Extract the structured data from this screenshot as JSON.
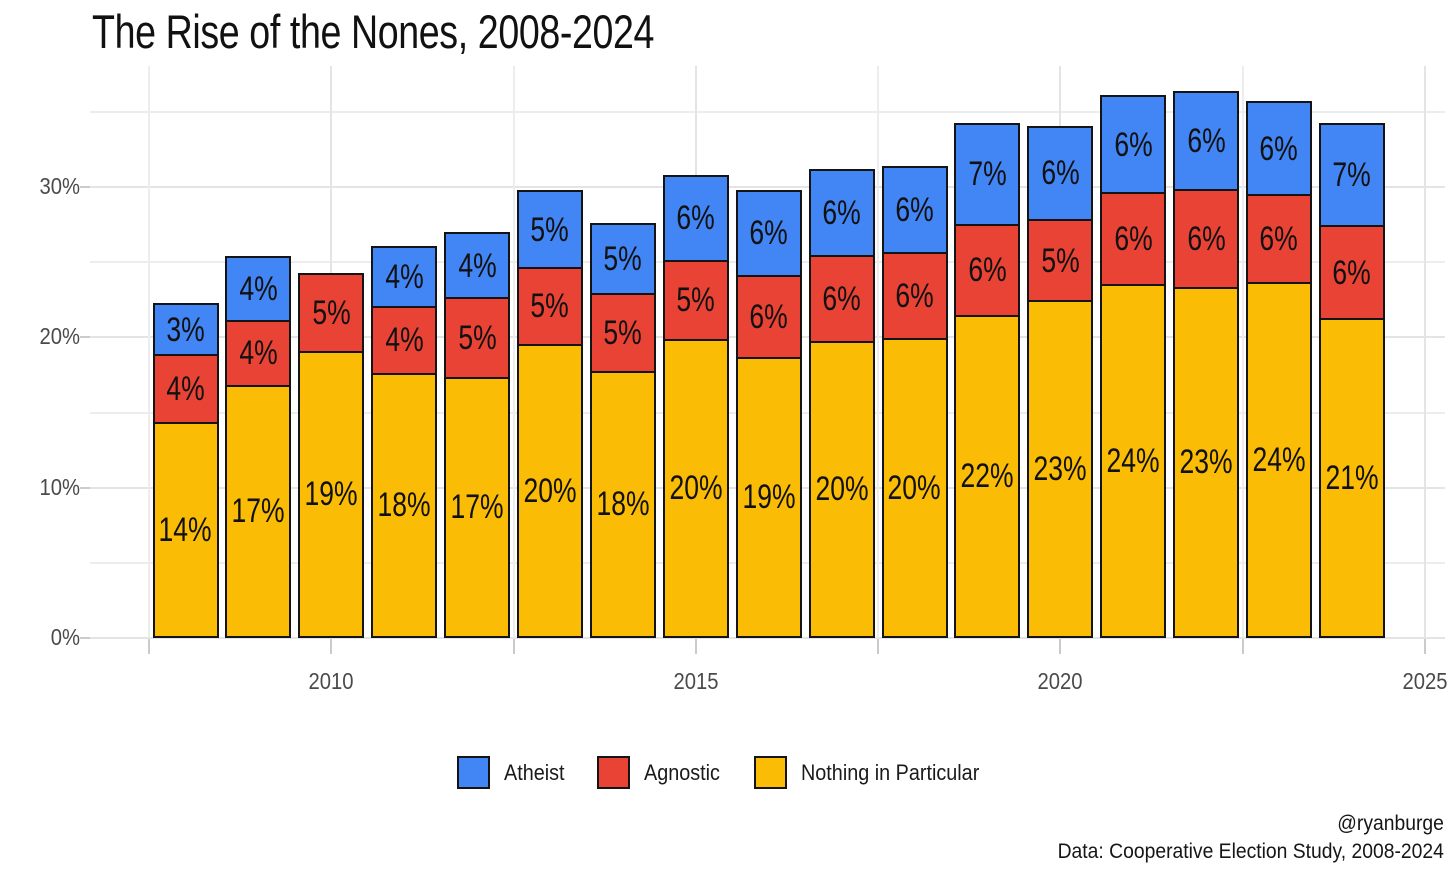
{
  "title": "The Rise of the Nones, 2008-2024",
  "caption": {
    "handle": "@ryanburge",
    "source": "Data: Cooperative Election Study, 2008-2024"
  },
  "legend": {
    "items": [
      {
        "label": "Atheist",
        "color": "#4285F4"
      },
      {
        "label": "Agnostic",
        "color": "#E94335"
      },
      {
        "label": "Nothing in Particular",
        "color": "#FBBC05"
      }
    ]
  },
  "chart_data": {
    "type": "stacked_bar",
    "title": "The Rise of the Nones, 2008-2024",
    "x": [
      2008,
      2009,
      2010,
      2011,
      2012,
      2013,
      2014,
      2015,
      2016,
      2017,
      2018,
      2019,
      2020,
      2021,
      2022,
      2023,
      2024
    ],
    "series": [
      {
        "name": "Nothing in Particular",
        "color": "#FBBC05",
        "values": [
          14.4,
          16.9,
          19.1,
          17.7,
          17.4,
          19.6,
          17.8,
          19.9,
          18.7,
          19.8,
          20.0,
          21.5,
          22.5,
          23.6,
          23.4,
          23.7,
          21.3
        ],
        "labels": [
          "14%",
          "17%",
          "19%",
          "18%",
          "17%",
          "20%",
          "18%",
          "20%",
          "19%",
          "20%",
          "20%",
          "22%",
          "23%",
          "24%",
          "23%",
          "24%",
          "21%"
        ]
      },
      {
        "name": "Agnostic",
        "color": "#E94335",
        "values": [
          4.5,
          4.3,
          5.2,
          4.4,
          5.3,
          5.1,
          5.2,
          5.3,
          5.5,
          5.7,
          5.7,
          6.1,
          5.4,
          6.1,
          6.5,
          5.9,
          6.2
        ],
        "labels": [
          "4%",
          "4%",
          "5%",
          "4%",
          "5%",
          "5%",
          "5%",
          "5%",
          "6%",
          "6%",
          "6%",
          "6%",
          "5%",
          "6%",
          "6%",
          "6%",
          "6%"
        ]
      },
      {
        "name": "Atheist",
        "color": "#4285F4",
        "values": [
          3.4,
          4.2,
          0,
          4.0,
          4.3,
          5.1,
          4.6,
          5.6,
          5.6,
          5.7,
          5.7,
          6.7,
          6.2,
          6.4,
          6.5,
          6.1,
          6.8
        ],
        "labels": [
          "3%",
          "4%",
          "",
          "4%",
          "4%",
          "5%",
          "5%",
          "6%",
          "6%",
          "6%",
          "6%",
          "7%",
          "6%",
          "6%",
          "6%",
          "6%",
          "7%"
        ]
      }
    ],
    "axes": {
      "y_major_ticks": [
        0,
        10,
        20,
        30
      ],
      "y_major_labels": [
        "0%",
        "10%",
        "20%",
        "30%"
      ],
      "y_minor_ticks": [
        5,
        15,
        25,
        35
      ],
      "y_top": 38.06,
      "x_major_ticks": [
        2010,
        2015,
        2020,
        2025
      ],
      "x_major_labels": [
        "2010",
        "2015",
        "2020",
        "2025"
      ],
      "x_minor_ticks": [
        2007.5,
        2012.5,
        2017.5,
        2022.5
      ],
      "grid": true,
      "legend_position": "bottom"
    }
  }
}
